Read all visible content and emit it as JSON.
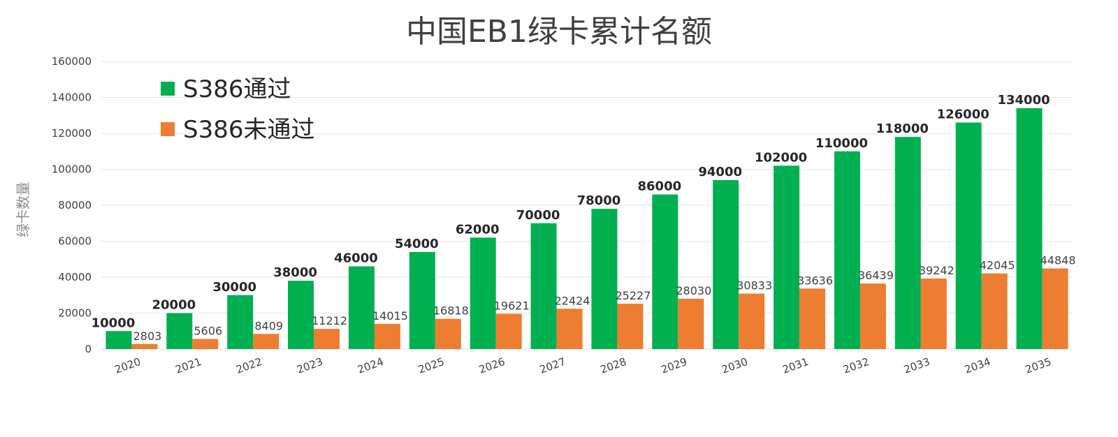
{
  "chart_data": {
    "type": "bar",
    "title": "中国EB1绿卡累计名额",
    "ylabel": "绿卡数量",
    "xlabel": "",
    "ylim": [
      0,
      160000
    ],
    "yticks": [
      0,
      20000,
      40000,
      60000,
      80000,
      100000,
      120000,
      140000,
      160000
    ],
    "grid": true,
    "legend_position": "top-left",
    "categories": [
      "2020",
      "2021",
      "2022",
      "2023",
      "2024",
      "2025",
      "2026",
      "2027",
      "2028",
      "2029",
      "2030",
      "2031",
      "2032",
      "2033",
      "2034",
      "2035"
    ],
    "series": [
      {
        "name": "S386通过",
        "color": "#00b050",
        "values": [
          10000,
          20000,
          30000,
          38000,
          46000,
          54000,
          62000,
          70000,
          78000,
          86000,
          94000,
          102000,
          110000,
          118000,
          126000,
          134000
        ]
      },
      {
        "name": "S386未通过",
        "color": "#ed7d31",
        "values": [
          2803,
          5606,
          8409,
          11212,
          14015,
          16818,
          19621,
          22424,
          25227,
          28030,
          30833,
          33636,
          36439,
          39242,
          42045,
          44848
        ]
      }
    ]
  }
}
